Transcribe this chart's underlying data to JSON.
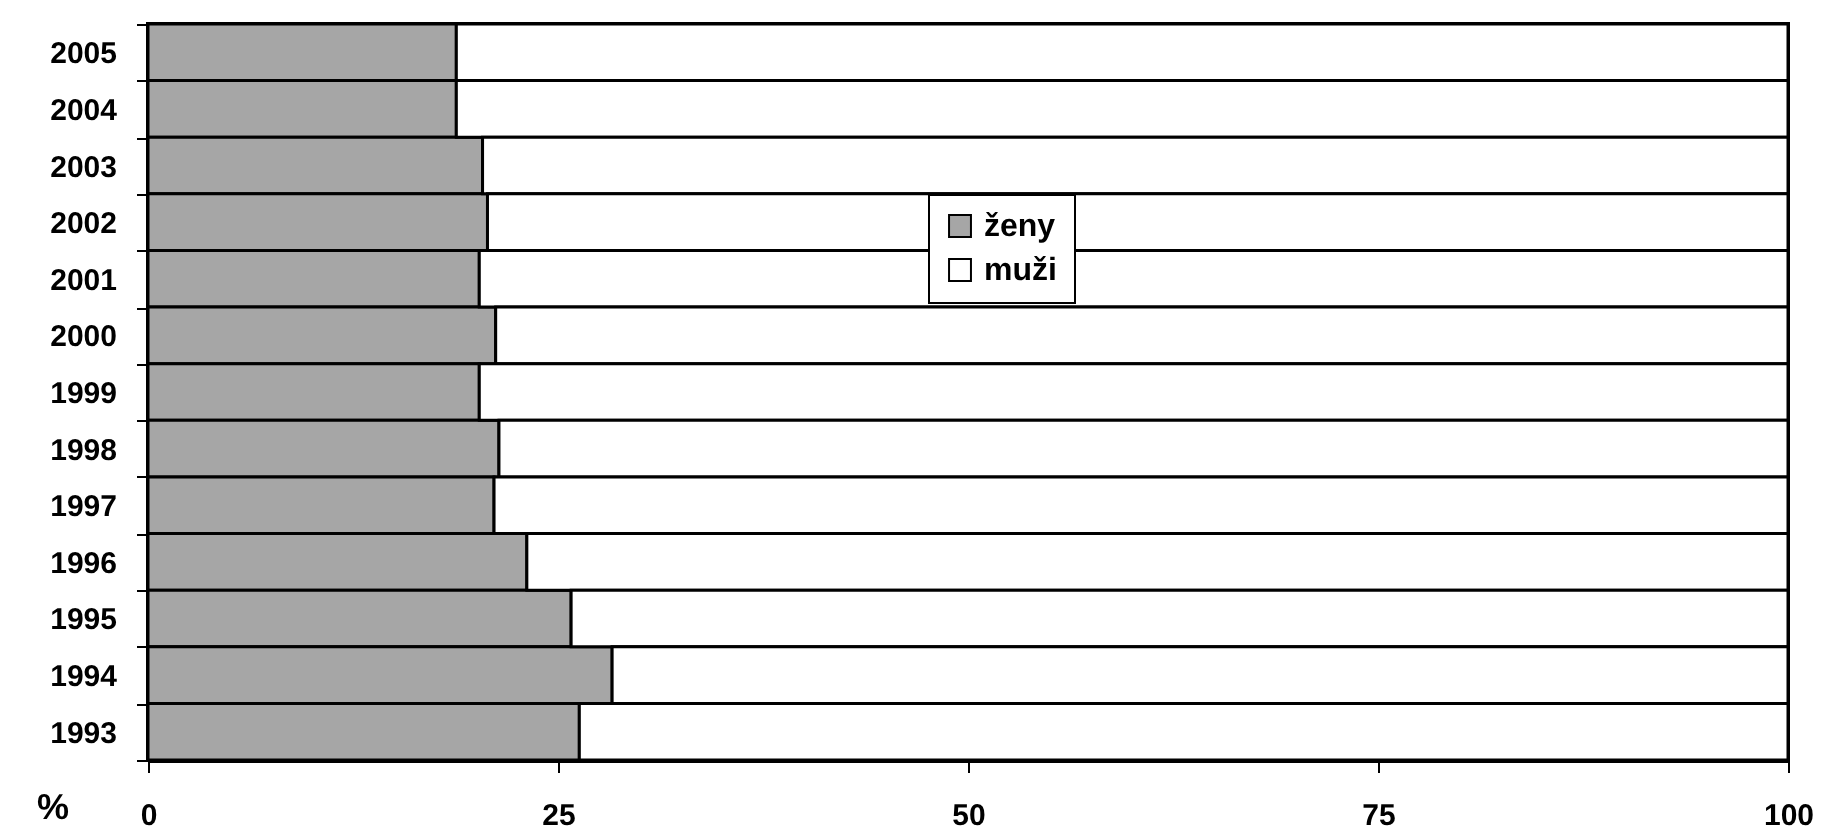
{
  "chart_data": {
    "type": "bar",
    "orientation": "horizontal",
    "stacked": true,
    "xlabel": "%",
    "categories": [
      "2005",
      "2004",
      "2003",
      "2002",
      "2001",
      "2000",
      "1999",
      "1998",
      "1997",
      "1996",
      "1995",
      "1994",
      "1993"
    ],
    "series": [
      {
        "name": "ženy",
        "color": "#a6a6a6",
        "values": [
          18.8,
          18.8,
          20.4,
          20.7,
          20.2,
          21.2,
          20.2,
          21.4,
          21.1,
          23.1,
          25.8,
          28.3,
          26.3
        ]
      },
      {
        "name": "muži",
        "color": "#ffffff",
        "values": [
          81.2,
          81.2,
          79.6,
          79.3,
          79.8,
          78.8,
          79.8,
          78.6,
          78.9,
          76.9,
          74.2,
          71.7,
          73.7
        ]
      }
    ],
    "xlim": [
      0,
      100
    ],
    "xticks": [
      0,
      25,
      50,
      75,
      100
    ],
    "grid": false,
    "legend": "top"
  }
}
